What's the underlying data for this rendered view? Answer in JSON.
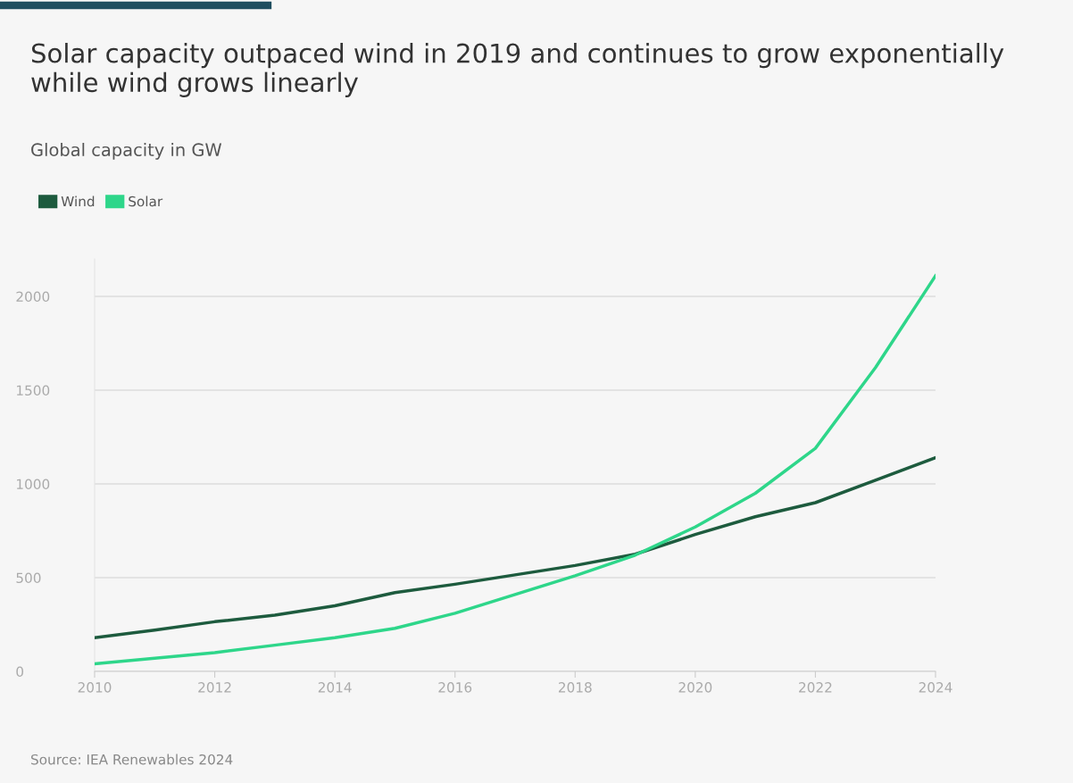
{
  "chart_data": {
    "type": "line",
    "title": "Solar capacity outpaced wind in 2019 and continues to grow exponentially while wind grows linearly",
    "subtitle": "Global capacity in GW",
    "x": [
      2010,
      2011,
      2012,
      2013,
      2014,
      2015,
      2016,
      2017,
      2018,
      2019,
      2020,
      2021,
      2022,
      2023,
      2024
    ],
    "series": [
      {
        "name": "Wind",
        "color": "#1d5b3e",
        "values": [
          180,
          220,
          265,
          300,
          350,
          420,
          465,
          515,
          565,
          625,
          730,
          825,
          900,
          1020,
          1140
        ]
      },
      {
        "name": "Solar",
        "color": "#2ed68a",
        "values": [
          40,
          70,
          100,
          140,
          180,
          230,
          310,
          410,
          510,
          620,
          770,
          950,
          1190,
          1620,
          2110
        ]
      }
    ],
    "xlim": [
      2010,
      2024
    ],
    "xticks": [
      2010,
      2012,
      2014,
      2016,
      2018,
      2020,
      2022,
      2024
    ],
    "ylim": [
      0,
      2200
    ],
    "yticks": [
      0,
      500,
      1000,
      1500,
      2000
    ],
    "grid": "y",
    "legend": "top left",
    "marker": "none",
    "line_style": "solid",
    "annotations": [
      "Source: IEA Renewables 2024"
    ]
  }
}
